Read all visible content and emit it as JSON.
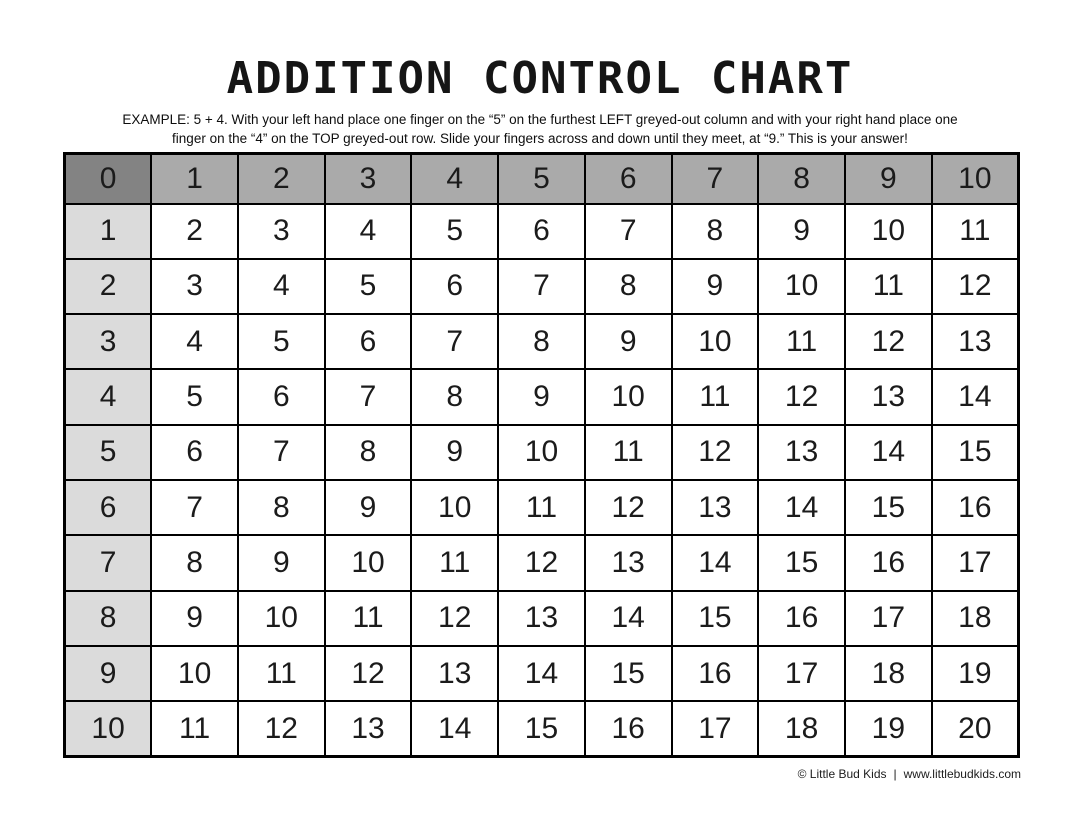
{
  "page": {
    "title": "ADDITION CONTROL CHART",
    "example_line1": "EXAMPLE: 5 + 4. With your left hand place one finger on the “5” on the furthest LEFT greyed-out column and with your right hand place one",
    "example_line2": "finger on the “4” on the TOP greyed-out row.  Slide your fingers across and down until they meet, at “9.” This is your answer!"
  },
  "footer": {
    "copyright": "© Little Bud Kids",
    "separator": "|",
    "url": "www.littlebudkids.com"
  },
  "colors": {
    "corner_cell": "#838383",
    "header_row": "#aaaaaa",
    "left_column": "#dbdbdb",
    "body_cell": "#ffffff",
    "grid_border": "#000000",
    "text": "#1b1b1b"
  },
  "chart_data": {
    "type": "table",
    "title": "ADDITION CONTROL CHART",
    "description": "Addition control chart: each body cell equals row label plus column label",
    "header_row": [
      "0",
      "1",
      "2",
      "3",
      "4",
      "5",
      "6",
      "7",
      "8",
      "9",
      "10"
    ],
    "rows": [
      {
        "label": "1",
        "values": [
          "2",
          "3",
          "4",
          "5",
          "6",
          "7",
          "8",
          "9",
          "10",
          "11"
        ]
      },
      {
        "label": "2",
        "values": [
          "3",
          "4",
          "5",
          "6",
          "7",
          "8",
          "9",
          "10",
          "11",
          "12"
        ]
      },
      {
        "label": "3",
        "values": [
          "4",
          "5",
          "6",
          "7",
          "8",
          "9",
          "10",
          "11",
          "12",
          "13"
        ]
      },
      {
        "label": "4",
        "values": [
          "5",
          "6",
          "7",
          "8",
          "9",
          "10",
          "11",
          "12",
          "13",
          "14"
        ]
      },
      {
        "label": "5",
        "values": [
          "6",
          "7",
          "8",
          "9",
          "10",
          "11",
          "12",
          "13",
          "14",
          "15"
        ]
      },
      {
        "label": "6",
        "values": [
          "7",
          "8",
          "9",
          "10",
          "11",
          "12",
          "13",
          "14",
          "15",
          "16"
        ]
      },
      {
        "label": "7",
        "values": [
          "8",
          "9",
          "10",
          "11",
          "12",
          "13",
          "14",
          "15",
          "16",
          "17"
        ]
      },
      {
        "label": "8",
        "values": [
          "9",
          "10",
          "11",
          "12",
          "13",
          "14",
          "15",
          "16",
          "17",
          "18"
        ]
      },
      {
        "label": "9",
        "values": [
          "10",
          "11",
          "12",
          "13",
          "14",
          "15",
          "16",
          "17",
          "18",
          "19"
        ]
      },
      {
        "label": "10",
        "values": [
          "11",
          "12",
          "13",
          "14",
          "15",
          "16",
          "17",
          "18",
          "19",
          "20"
        ]
      }
    ]
  }
}
